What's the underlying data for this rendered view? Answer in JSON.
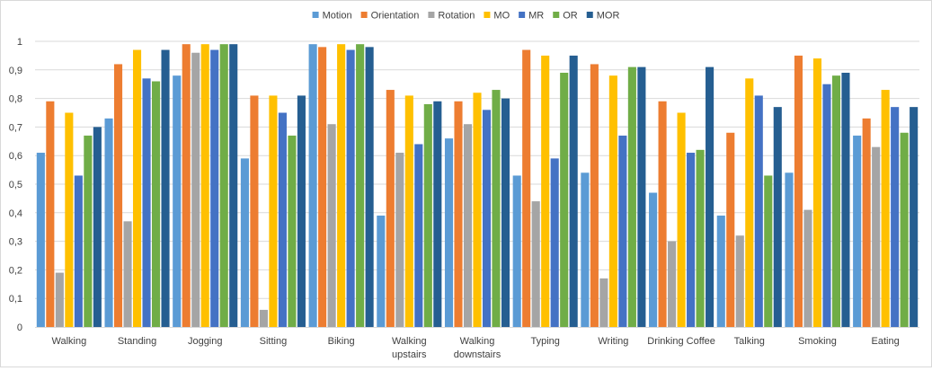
{
  "chart_data": {
    "type": "bar",
    "categories": [
      "Walking",
      "Standing",
      "Jogging",
      "Sitting",
      "Biking",
      "Walking upstairs",
      "Walking downstairs",
      "Typing",
      "Writing",
      "Drinking Coffee",
      "Talking",
      "Smoking",
      "Eating"
    ],
    "series": [
      {
        "name": "Motion",
        "color": "#5b9bd5",
        "values": [
          0.61,
          0.73,
          0.88,
          0.59,
          0.99,
          0.39,
          0.66,
          0.53,
          0.54,
          0.47,
          0.39,
          0.54,
          0.67
        ]
      },
      {
        "name": "Orientation",
        "color": "#ed7d31",
        "values": [
          0.79,
          0.92,
          0.99,
          0.81,
          0.98,
          0.83,
          0.79,
          0.97,
          0.92,
          0.79,
          0.68,
          0.95,
          0.73
        ]
      },
      {
        "name": "Rotation",
        "color": "#a5a5a5",
        "values": [
          0.19,
          0.37,
          0.96,
          0.06,
          0.71,
          0.61,
          0.71,
          0.44,
          0.17,
          0.3,
          0.32,
          0.41,
          0.63
        ]
      },
      {
        "name": "MO",
        "color": "#ffc000",
        "values": [
          0.75,
          0.97,
          0.99,
          0.81,
          0.99,
          0.81,
          0.82,
          0.95,
          0.88,
          0.75,
          0.87,
          0.94,
          0.83
        ]
      },
      {
        "name": "MR",
        "color": "#4472c4",
        "values": [
          0.53,
          0.87,
          0.97,
          0.75,
          0.97,
          0.64,
          0.76,
          0.59,
          0.67,
          0.61,
          0.81,
          0.85,
          0.77
        ]
      },
      {
        "name": "OR",
        "color": "#70ad47",
        "values": [
          0.67,
          0.86,
          0.99,
          0.67,
          0.99,
          0.78,
          0.83,
          0.89,
          0.91,
          0.62,
          0.53,
          0.88,
          0.68
        ]
      },
      {
        "name": "MOR",
        "color": "#255e91",
        "values": [
          0.7,
          0.97,
          0.99,
          0.81,
          0.98,
          0.79,
          0.8,
          0.95,
          0.91,
          0.91,
          0.77,
          0.89,
          0.77
        ]
      }
    ],
    "yticks": [
      "0",
      "0,1",
      "0,2",
      "0,3",
      "0,4",
      "0,5",
      "0,6",
      "0,7",
      "0,8",
      "0,9",
      "1"
    ],
    "ylim": [
      0,
      1
    ],
    "grid": true,
    "legend_position": "top-center",
    "gridline_color": "#d9d9d9"
  }
}
